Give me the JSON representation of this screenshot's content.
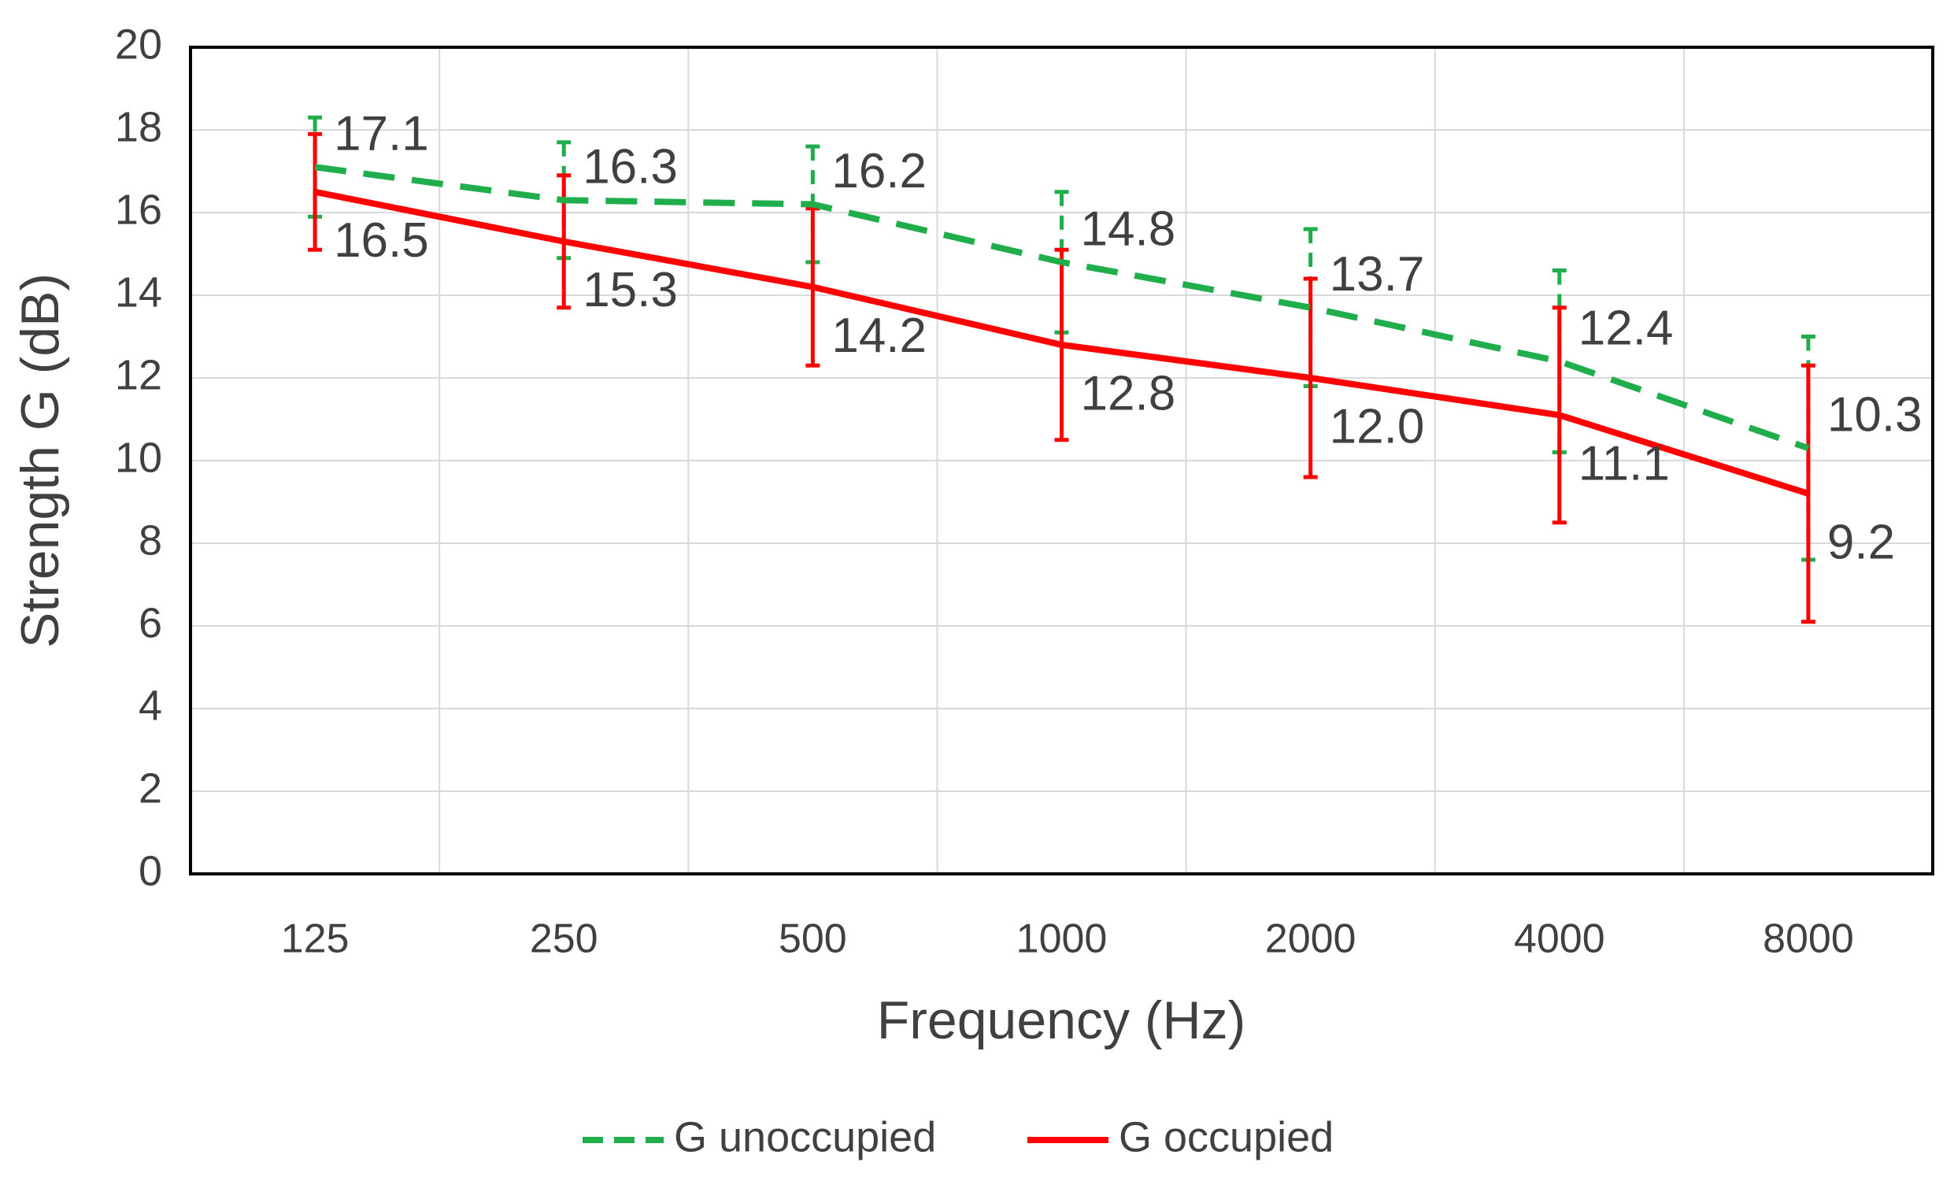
{
  "chart_data": {
    "type": "line",
    "y_label": "Strength G (dB)",
    "x_label": "Frequency (Hz)",
    "categories": [
      "125",
      "250",
      "500",
      "1000",
      "2000",
      "4000",
      "8000"
    ],
    "series": [
      {
        "name": "G unoccupied",
        "color": "#1fae4b",
        "dashed": true,
        "values": [
          17.1,
          16.3,
          16.2,
          14.8,
          13.7,
          12.4,
          10.3
        ],
        "value_labels": [
          "17.1",
          "16.3",
          "16.2",
          "14.8",
          "13.7",
          "12.4",
          "10.3"
        ],
        "errors": [
          1.2,
          1.4,
          1.4,
          1.7,
          1.9,
          2.2,
          2.7
        ]
      },
      {
        "name": "G occupied",
        "color": "#ff0000",
        "dashed": false,
        "values": [
          16.5,
          15.3,
          14.2,
          12.8,
          12,
          11.1,
          9.2
        ],
        "value_labels": [
          "16.5",
          "15.3",
          "14.2",
          "12.8",
          "12.0",
          "11.1",
          "9.2"
        ],
        "errors": [
          1.4,
          1.6,
          1.9,
          2.3,
          2.4,
          2.6,
          3.1
        ]
      }
    ],
    "ylim": [
      0,
      20
    ],
    "yticks": [
      0,
      2,
      4,
      6,
      8,
      10,
      12,
      14,
      16,
      18,
      20
    ],
    "grid": true,
    "legend": "bottom"
  }
}
